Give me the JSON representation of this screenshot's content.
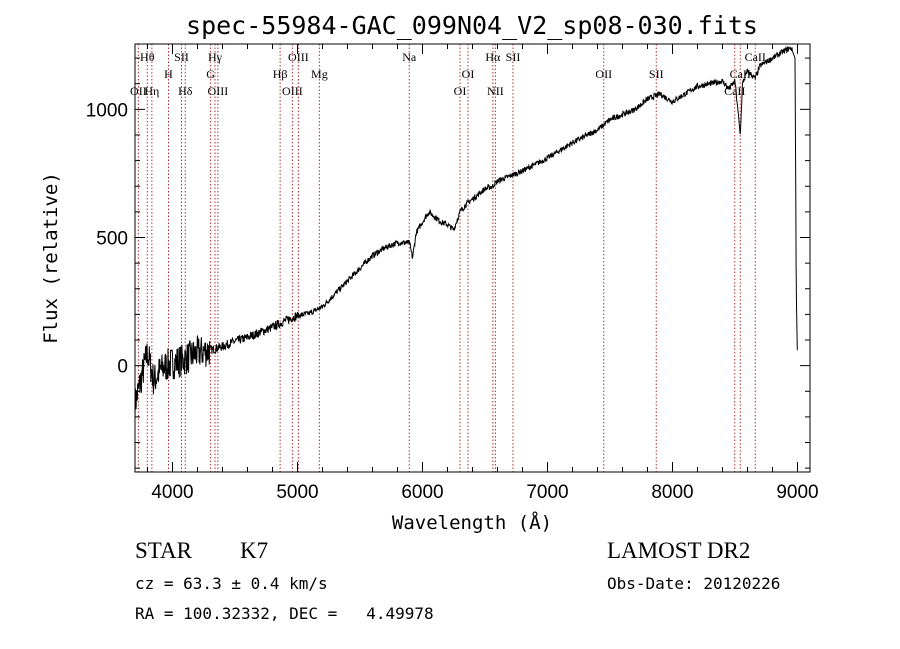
{
  "chart_data": {
    "type": "line",
    "title": "spec-55984-GAC_099N04_V2_sp08-030.fits",
    "xlabel": "Wavelength (Å)",
    "ylabel": "Flux (relative)",
    "xlim": [
      3700,
      9100
    ],
    "ylim": [
      -415,
      1255
    ],
    "xticks": [
      4000,
      5000,
      6000,
      7000,
      8000,
      9000
    ],
    "yticks": [
      0,
      500,
      1000
    ],
    "series": [
      {
        "x": [
          3700,
          3750,
          3800,
          3850,
          3900,
          3950,
          4000,
          4100,
          4200,
          4300,
          4400,
          4500,
          4600,
          4700,
          4800,
          4900,
          5000,
          5100,
          5200,
          5300,
          5400,
          5500,
          5600,
          5700,
          5800,
          5895,
          5920,
          5950,
          6050,
          6100,
          6150,
          6200,
          6250,
          6300,
          6350,
          6400,
          6500,
          6560,
          6600,
          6700,
          6800,
          7000,
          7200,
          7400,
          7500,
          7600,
          7700,
          7800,
          7850,
          7900,
          8000,
          8100,
          8200,
          8300,
          8400,
          8450,
          8500,
          8542,
          8560,
          8600,
          8662,
          8700,
          8800,
          8900,
          8950,
          8980,
          8990,
          9000
        ],
        "y": [
          -150,
          -50,
          50,
          -60,
          -20,
          0,
          10,
          25,
          50,
          60,
          75,
          95,
          110,
          130,
          150,
          175,
          195,
          205,
          230,
          280,
          330,
          380,
          430,
          460,
          480,
          480,
          420,
          520,
          600,
          580,
          560,
          550,
          530,
          600,
          630,
          650,
          690,
          700,
          720,
          740,
          760,
          810,
          870,
          920,
          960,
          980,
          1000,
          1040,
          1050,
          1060,
          1030,
          1060,
          1090,
          1100,
          1110,
          1080,
          1110,
          900,
          1100,
          1150,
          1120,
          1170,
          1200,
          1230,
          1240,
          1200,
          300,
          0
        ]
      }
    ],
    "annotations": [
      {
        "label": "Hθ",
        "x": 3798,
        "row": 1
      },
      {
        "label": "H",
        "x": 3968,
        "row": 2
      },
      {
        "label": "SII",
        "x": 4072,
        "row": 1
      },
      {
        "label": "Hγ",
        "x": 4340,
        "row": 1
      },
      {
        "label": "G",
        "x": 4305,
        "row": 2
      },
      {
        "label": "OIII",
        "x": 4363,
        "row": 3
      },
      {
        "label": "OII",
        "x": 3727,
        "row": 3
      },
      {
        "label": "Hη",
        "x": 3835,
        "row": 3
      },
      {
        "label": "Hδ",
        "x": 4102,
        "row": 3
      },
      {
        "label": "OIII",
        "x": 5007,
        "row": 1
      },
      {
        "label": "Hβ",
        "x": 4861,
        "row": 2
      },
      {
        "label": "Mg",
        "x": 5175,
        "row": 2
      },
      {
        "label": "OIII",
        "x": 4959,
        "row": 3
      },
      {
        "label": "Na",
        "x": 5894,
        "row": 1
      },
      {
        "label": "OI",
        "x": 6364,
        "row": 2
      },
      {
        "label": "OI",
        "x": 6300,
        "row": 3
      },
      {
        "label": "Hα",
        "x": 6563,
        "row": 1
      },
      {
        "label": "SII",
        "x": 6724,
        "row": 1
      },
      {
        "label": "NII",
        "x": 6583,
        "row": 3
      },
      {
        "label": "OII",
        "x": 7450,
        "row": 2
      },
      {
        "label": "SII",
        "x": 7870,
        "row": 2
      },
      {
        "label": "CaII",
        "x": 8662,
        "row": 1
      },
      {
        "label": "CaII",
        "x": 8542,
        "row": 2
      },
      {
        "label": "CaII",
        "x": 8498,
        "row": 3
      }
    ]
  },
  "info": {
    "object_class": "STAR",
    "subclass": "K7",
    "survey": "LAMOST DR2",
    "cz": "cz = 63.3 ± 0.4 km/s",
    "obs_date": "Obs-Date: 20120226",
    "coords": "RA = 100.32332, DEC =   4.49978"
  }
}
